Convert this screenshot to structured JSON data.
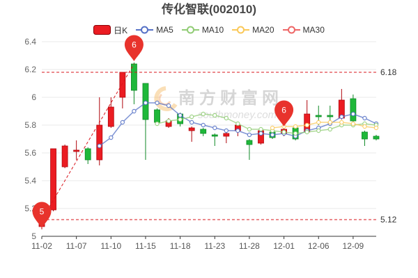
{
  "chart_data": {
    "type": "candlestick",
    "title": "传化智联(002010)",
    "candle_name": "日K",
    "legend_position": "top",
    "grid": true,
    "ylim": [
      5,
      6.4
    ],
    "y_ticks": [
      6.4,
      6.2,
      6,
      5.8,
      5.6,
      5.4,
      5.2,
      5
    ],
    "x_ticks": [
      {
        "index": 0,
        "label": "11-02"
      },
      {
        "index": 3,
        "label": "11-07"
      },
      {
        "index": 6,
        "label": "11-10"
      },
      {
        "index": 9,
        "label": "11-15"
      },
      {
        "index": 12,
        "label": "11-18"
      },
      {
        "index": 15,
        "label": "11-23"
      },
      {
        "index": 18,
        "label": "11-28"
      },
      {
        "index": 21,
        "label": "12-01"
      },
      {
        "index": 24,
        "label": "12-06"
      },
      {
        "index": 27,
        "label": "12-09"
      }
    ],
    "colors": {
      "up": "#eb1c22",
      "down": "#1fb83a",
      "marker": "#e8332c",
      "reference_line": "#d9141b"
    },
    "candles": [
      {
        "open": 5.07,
        "close": 5.12,
        "low": 5.05,
        "high": 5.13
      },
      {
        "open": 5.19,
        "close": 5.63,
        "low": 5.18,
        "high": 5.63
      },
      {
        "open": 5.5,
        "close": 5.65,
        "low": 5.49,
        "high": 5.66
      },
      {
        "open": 5.61,
        "close": 5.62,
        "low": 5.55,
        "high": 5.69
      },
      {
        "open": 5.63,
        "close": 5.55,
        "low": 5.52,
        "high": 5.64
      },
      {
        "open": 5.55,
        "close": 5.8,
        "low": 5.51,
        "high": 6.0
      },
      {
        "open": 5.79,
        "close": 5.93,
        "low": 5.78,
        "high": 6.0
      },
      {
        "open": 6.0,
        "close": 6.18,
        "low": 5.92,
        "high": 6.18
      },
      {
        "open": 6.24,
        "close": 6.05,
        "low": 5.95,
        "high": 6.25
      },
      {
        "open": 6.1,
        "close": 5.84,
        "low": 5.55,
        "high": 6.1
      },
      {
        "open": 5.91,
        "close": 5.82,
        "low": 5.8,
        "high": 5.92
      },
      {
        "open": 5.79,
        "close": 5.83,
        "low": 5.78,
        "high": 5.85
      },
      {
        "open": 5.88,
        "close": 5.81,
        "low": 5.79,
        "high": 5.89
      },
      {
        "open": 5.76,
        "close": 5.78,
        "low": 5.68,
        "high": 5.79
      },
      {
        "open": 5.77,
        "close": 5.74,
        "low": 5.72,
        "high": 5.78
      },
      {
        "open": 5.73,
        "close": 5.72,
        "low": 5.65,
        "high": 5.74
      },
      {
        "open": 5.72,
        "close": 5.74,
        "low": 5.67,
        "high": 5.75
      },
      {
        "open": 5.76,
        "close": 5.8,
        "low": 5.72,
        "high": 5.81
      },
      {
        "open": 5.69,
        "close": 5.66,
        "low": 5.55,
        "high": 5.7
      },
      {
        "open": 5.67,
        "close": 5.76,
        "low": 5.66,
        "high": 5.78
      },
      {
        "open": 5.75,
        "close": 5.71,
        "low": 5.7,
        "high": 5.78
      },
      {
        "open": 5.74,
        "close": 5.77,
        "low": 5.72,
        "high": 5.78
      },
      {
        "open": 5.78,
        "close": 5.7,
        "low": 5.69,
        "high": 5.8
      },
      {
        "open": 5.75,
        "close": 5.88,
        "low": 5.74,
        "high": 5.98
      },
      {
        "open": 5.87,
        "close": 5.86,
        "low": 5.8,
        "high": 5.94
      },
      {
        "open": 5.87,
        "close": 5.86,
        "low": 5.82,
        "high": 5.94
      },
      {
        "open": 5.85,
        "close": 5.98,
        "low": 5.84,
        "high": 6.06
      },
      {
        "open": 5.99,
        "close": 5.83,
        "low": 5.8,
        "high": 6.02
      },
      {
        "open": 5.75,
        "close": 5.7,
        "low": 5.65,
        "high": 5.76
      },
      {
        "open": 5.72,
        "close": 5.7,
        "low": 5.69,
        "high": 5.73
      }
    ],
    "series": [
      {
        "name": "MA5",
        "color": "#5470c6",
        "values": [
          null,
          null,
          null,
          null,
          null,
          5.65,
          5.71,
          5.82,
          5.9,
          5.96,
          5.96,
          5.94,
          5.87,
          5.82,
          5.8,
          5.78,
          5.76,
          5.76,
          5.73,
          5.74,
          5.73,
          5.74,
          5.72,
          5.76,
          5.78,
          5.81,
          5.86,
          5.88,
          5.85,
          5.81
        ]
      },
      {
        "name": "MA10",
        "color": "#91cc75",
        "values": [
          null,
          null,
          null,
          null,
          null,
          null,
          null,
          null,
          null,
          null,
          5.81,
          5.83,
          5.84,
          5.86,
          5.88,
          5.87,
          5.85,
          5.81,
          5.77,
          5.77,
          5.76,
          5.75,
          5.74,
          5.75,
          5.76,
          5.77,
          5.8,
          5.8,
          5.81,
          5.8
        ]
      },
      {
        "name": "MA20",
        "color": "#fac858",
        "values": [
          null,
          null,
          null,
          null,
          null,
          null,
          null,
          null,
          null,
          null,
          null,
          null,
          null,
          null,
          null,
          null,
          null,
          null,
          null,
          null,
          5.78,
          5.79,
          5.79,
          5.8,
          5.82,
          5.82,
          5.82,
          5.81,
          5.79,
          5.78
        ]
      },
      {
        "name": "MA30",
        "color": "#ee6666",
        "values": []
      }
    ],
    "reference_lines": [
      {
        "value": 6.18,
        "label": "6.18"
      },
      {
        "value": 5.12,
        "label": "5.12"
      }
    ],
    "mark_points": [
      {
        "index": 0,
        "value": 5.06,
        "label": "5"
      },
      {
        "index": 8,
        "value": 6.26,
        "label": "6"
      },
      {
        "index": 21,
        "value": 5.79,
        "label": "6"
      }
    ],
    "trend_line": {
      "from": {
        "index": 0,
        "value": 5.12
      },
      "to": {
        "index": 8,
        "value": 6.24
      }
    }
  },
  "watermark": {
    "text": "南方财富网",
    "subtext": "southmoney.com"
  }
}
